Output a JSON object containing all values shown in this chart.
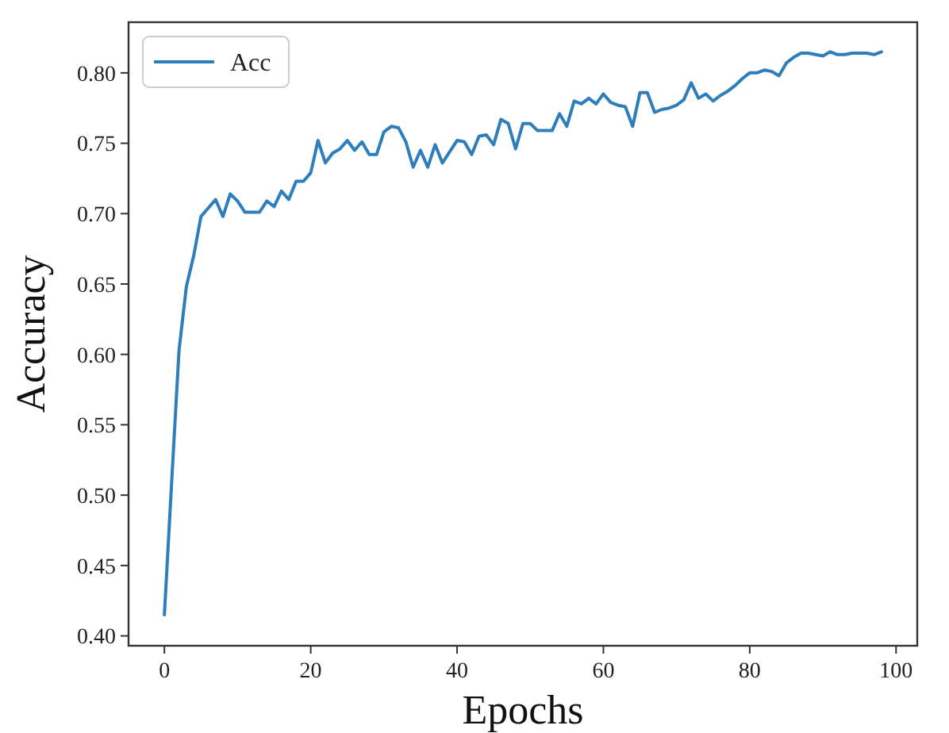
{
  "chart_data": {
    "type": "line",
    "xlabel": "Epochs",
    "ylabel": "Accuracy",
    "xlim": [
      -4.9,
      102.9
    ],
    "ylim": [
      0.393,
      0.836
    ],
    "xticks": [
      0,
      20,
      40,
      60,
      80,
      100
    ],
    "yticks": [
      {
        "value": 0.4,
        "label": "0.40"
      },
      {
        "value": 0.45,
        "label": "0.45"
      },
      {
        "value": 0.5,
        "label": "0.50"
      },
      {
        "value": 0.55,
        "label": "0.55"
      },
      {
        "value": 0.6,
        "label": "0.60"
      },
      {
        "value": 0.65,
        "label": "0.65"
      },
      {
        "value": 0.7,
        "label": "0.70"
      },
      {
        "value": 0.75,
        "label": "0.75"
      },
      {
        "value": 0.8,
        "label": "0.80"
      }
    ],
    "grid": false,
    "legend": "top left",
    "x": [
      0,
      1,
      2,
      3,
      4,
      5,
      6,
      7,
      8,
      9,
      10,
      11,
      12,
      13,
      14,
      15,
      16,
      17,
      18,
      19,
      20,
      21,
      22,
      23,
      24,
      25,
      26,
      27,
      28,
      29,
      30,
      31,
      32,
      33,
      34,
      35,
      36,
      37,
      38,
      39,
      40,
      41,
      42,
      43,
      44,
      45,
      46,
      47,
      48,
      49,
      50,
      51,
      52,
      53,
      54,
      55,
      56,
      57,
      58,
      59,
      60,
      61,
      62,
      63,
      64,
      65,
      66,
      67,
      68,
      69,
      70,
      71,
      72,
      73,
      74,
      75,
      76,
      77,
      78,
      79,
      80,
      81,
      82,
      83,
      84,
      85,
      86,
      87,
      88,
      89,
      90,
      91,
      92,
      93,
      94,
      95,
      96,
      97,
      98
    ],
    "series": [
      {
        "name": "Acc",
        "color": "#2e7ebc",
        "values": [
          0.415,
          0.51,
          0.603,
          0.648,
          0.67,
          0.698,
          0.704,
          0.71,
          0.698,
          0.714,
          0.709,
          0.701,
          0.701,
          0.701,
          0.709,
          0.705,
          0.716,
          0.71,
          0.723,
          0.723,
          0.729,
          0.752,
          0.736,
          0.743,
          0.746,
          0.752,
          0.745,
          0.751,
          0.742,
          0.742,
          0.758,
          0.762,
          0.761,
          0.751,
          0.733,
          0.745,
          0.733,
          0.749,
          0.736,
          0.744,
          0.752,
          0.751,
          0.742,
          0.755,
          0.756,
          0.749,
          0.767,
          0.764,
          0.746,
          0.764,
          0.764,
          0.759,
          0.759,
          0.759,
          0.771,
          0.762,
          0.78,
          0.778,
          0.782,
          0.778,
          0.785,
          0.779,
          0.777,
          0.776,
          0.762,
          0.786,
          0.786,
          0.772,
          0.774,
          0.775,
          0.777,
          0.781,
          0.793,
          0.782,
          0.785,
          0.78,
          0.784,
          0.787,
          0.791,
          0.796,
          0.8,
          0.8,
          0.802,
          0.801,
          0.798,
          0.807,
          0.811,
          0.814,
          0.814,
          0.813,
          0.812,
          0.815,
          0.813,
          0.813,
          0.814,
          0.814,
          0.814,
          0.813,
          0.815
        ]
      }
    ]
  }
}
